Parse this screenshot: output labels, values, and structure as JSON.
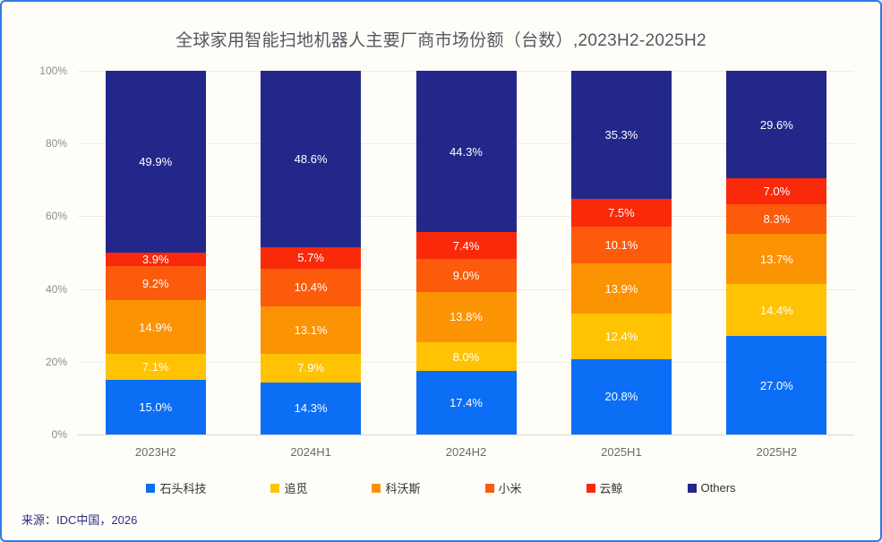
{
  "title": "全球家用智能扫地机器人主要厂商市场份额（台数）,2023H2-2025H2",
  "source": "来源：IDC中国，2026",
  "colors": {
    "background": "#FFFDF8",
    "frame_border": "#2E7BE2",
    "gridline": "#ECEAE6",
    "axis_line": "#D8D6D2",
    "title_text": "#56575F",
    "tick_text": "#8C8C8C",
    "source_text": "#2B2F85"
  },
  "chart_data": {
    "type": "bar",
    "subtype": "stacked-percentage",
    "title": "全球家用智能扫地机器人主要厂商市场份额（台数）,2023H2-2025H2",
    "categories": [
      "2023H2",
      "2024H1",
      "2024H2",
      "2025H1",
      "2025H2"
    ],
    "series": [
      {
        "name": "石头科技",
        "color": "#0C6EF4",
        "values": [
          15.0,
          14.3,
          17.4,
          20.8,
          27.0
        ]
      },
      {
        "name": "追觅",
        "color": "#FFC303",
        "values": [
          7.1,
          7.9,
          8.0,
          12.4,
          14.4
        ]
      },
      {
        "name": "科沃斯",
        "color": "#FC9303",
        "values": [
          14.9,
          13.1,
          13.8,
          13.9,
          13.7
        ]
      },
      {
        "name": "小米",
        "color": "#FB5B0B",
        "values": [
          9.2,
          10.4,
          9.0,
          10.1,
          8.3
        ]
      },
      {
        "name": "云鲸",
        "color": "#F9290A",
        "values": [
          3.9,
          5.7,
          7.4,
          7.5,
          7.0
        ]
      },
      {
        "name": "Others",
        "color": "#23278A",
        "values": [
          49.9,
          48.6,
          44.3,
          35.3,
          29.6
        ]
      }
    ],
    "xlabel": "",
    "ylabel": "",
    "ylim": [
      0,
      100
    ],
    "yticks": [
      0,
      20,
      40,
      60,
      80,
      100
    ],
    "ytick_suffix": "%",
    "value_suffix": "%",
    "value_decimals": 1,
    "grid": true,
    "legend_position": "bottom"
  }
}
